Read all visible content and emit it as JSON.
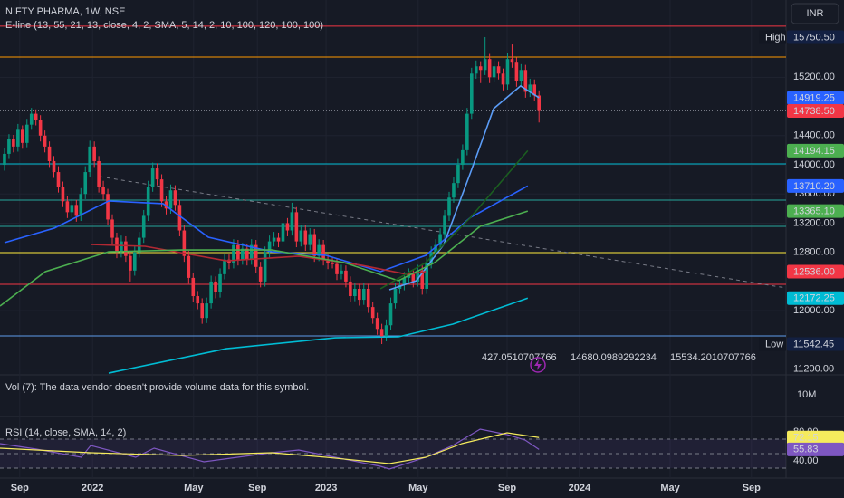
{
  "header": {
    "symbol": "NIFTY PHARMA, 1W, NSE",
    "indicator": "E-line (13, 55, 21, 13, close, 4, 2, SMA, 5, 14, 2, 10, 100, 120, 100, 100)",
    "currency": "INR"
  },
  "chart_data": {
    "type": "candlestick",
    "xlim": [
      -1,
      174
    ],
    "ylim": [
      11133,
      16259
    ],
    "up_color": "#089981",
    "down_color": "#f23645",
    "grid": true,
    "candles": [
      [
        14000,
        14230,
        13920,
        14150
      ],
      [
        14150,
        14420,
        14080,
        14350
      ],
      [
        14350,
        14410,
        14170,
        14250
      ],
      [
        14250,
        14560,
        14180,
        14480
      ],
      [
        14480,
        14540,
        14220,
        14300
      ],
      [
        14300,
        14630,
        14240,
        14550
      ],
      [
        14550,
        14780,
        14480,
        14700
      ],
      [
        14700,
        14760,
        14540,
        14620
      ],
      [
        14620,
        14680,
        14320,
        14400
      ],
      [
        14400,
        14470,
        14170,
        14250
      ],
      [
        14250,
        14320,
        13970,
        14050
      ],
      [
        14050,
        14120,
        13820,
        13900
      ],
      [
        13900,
        13980,
        13620,
        13700
      ],
      [
        13700,
        13770,
        13420,
        13500
      ],
      [
        13500,
        13570,
        13270,
        13350
      ],
      [
        13350,
        13530,
        13280,
        13450
      ],
      [
        13450,
        13520,
        13220,
        13300
      ],
      [
        13300,
        13680,
        13230,
        13600
      ],
      [
        13600,
        13980,
        13530,
        13900
      ],
      [
        13900,
        14330,
        13830,
        14250
      ],
      [
        14250,
        14320,
        13970,
        14050
      ],
      [
        14050,
        14120,
        13620,
        13700
      ],
      [
        13700,
        13780,
        13520,
        13600
      ],
      [
        13600,
        13670,
        13170,
        13250
      ],
      [
        13250,
        13320,
        12920,
        13000
      ],
      [
        13000,
        13070,
        12720,
        12800
      ],
      [
        12800,
        13030,
        12730,
        12950
      ],
      [
        12950,
        13020,
        12670,
        12750
      ],
      [
        12750,
        12820,
        12400,
        12550
      ],
      [
        12550,
        12880,
        12480,
        12800
      ],
      [
        12800,
        13080,
        12730,
        13000
      ],
      [
        13000,
        13380,
        12930,
        13300
      ],
      [
        13300,
        13780,
        13230,
        13700
      ],
      [
        13700,
        14030,
        13630,
        13950
      ],
      [
        13950,
        14020,
        13720,
        13800
      ],
      [
        13800,
        13870,
        13420,
        13500
      ],
      [
        13500,
        13570,
        13320,
        13400
      ],
      [
        13400,
        13730,
        13330,
        13650
      ],
      [
        13650,
        13720,
        13370,
        13450
      ],
      [
        13450,
        13520,
        13020,
        13100
      ],
      [
        13100,
        13170,
        12670,
        12750
      ],
      [
        12750,
        12820,
        12370,
        12450
      ],
      [
        12450,
        12520,
        12120,
        12200
      ],
      [
        12200,
        12270,
        12020,
        12100
      ],
      [
        12100,
        12170,
        11820,
        11900
      ],
      [
        11900,
        12180,
        11830,
        12100
      ],
      [
        12100,
        12480,
        12030,
        12400
      ],
      [
        12400,
        12470,
        12170,
        12250
      ],
      [
        12250,
        12580,
        12180,
        12500
      ],
      [
        12500,
        12780,
        12430,
        12700
      ],
      [
        12700,
        12770,
        12570,
        12650
      ],
      [
        12650,
        12980,
        12580,
        12900
      ],
      [
        12900,
        12970,
        12620,
        12700
      ],
      [
        12700,
        12930,
        12630,
        12850
      ],
      [
        12850,
        12920,
        12620,
        12700
      ],
      [
        12700,
        12980,
        12630,
        12900
      ],
      [
        12900,
        12970,
        12520,
        12600
      ],
      [
        12600,
        12670,
        12320,
        12400
      ],
      [
        12400,
        12880,
        12330,
        12800
      ],
      [
        12800,
        13030,
        12730,
        12950
      ],
      [
        12950,
        13080,
        12880,
        13000
      ],
      [
        13000,
        13070,
        12870,
        12950
      ],
      [
        12950,
        13280,
        12880,
        13200
      ],
      [
        13200,
        13270,
        13020,
        13100
      ],
      [
        13100,
        13480,
        13030,
        13350
      ],
      [
        13350,
        13420,
        12870,
        12950
      ],
      [
        12950,
        13180,
        12880,
        13100
      ],
      [
        13100,
        13170,
        12820,
        12900
      ],
      [
        12900,
        13130,
        12830,
        13050
      ],
      [
        13050,
        13120,
        12670,
        12750
      ],
      [
        12750,
        12980,
        12680,
        12900
      ],
      [
        12900,
        12970,
        12620,
        12700
      ],
      [
        12700,
        12770,
        12570,
        12650
      ],
      [
        12650,
        12720,
        12580,
        12640
      ],
      [
        12640,
        12720,
        12420,
        12500
      ],
      [
        12500,
        12630,
        12430,
        12550
      ],
      [
        12550,
        12620,
        12320,
        12400
      ],
      [
        12400,
        12470,
        12120,
        12200
      ],
      [
        12200,
        12380,
        12130,
        12300
      ],
      [
        12300,
        12370,
        12070,
        12150
      ],
      [
        12150,
        12380,
        12080,
        12300
      ],
      [
        12300,
        12370,
        11970,
        12050
      ],
      [
        12050,
        12120,
        11820,
        11900
      ],
      [
        11900,
        11970,
        11670,
        11750
      ],
      [
        11750,
        11820,
        11542.45,
        11650
      ],
      [
        11650,
        11880,
        11580,
        11800
      ],
      [
        11800,
        12180,
        11730,
        12100
      ],
      [
        12100,
        12380,
        12030,
        12300
      ],
      [
        12300,
        12430,
        12230,
        12350
      ],
      [
        12350,
        12530,
        12280,
        12450
      ],
      [
        12450,
        12580,
        12380,
        12500
      ],
      [
        12500,
        12570,
        12320,
        12400
      ],
      [
        12400,
        12630,
        12330,
        12550
      ],
      [
        12550,
        12620,
        12220,
        12300
      ],
      [
        12300,
        12730,
        12230,
        12650
      ],
      [
        12650,
        12880,
        12580,
        12800
      ],
      [
        12800,
        12980,
        12730,
        12900
      ],
      [
        12900,
        13130,
        12830,
        13050
      ],
      [
        13050,
        13380,
        12980,
        13300
      ],
      [
        13300,
        13630,
        13230,
        13550
      ],
      [
        13550,
        13830,
        13480,
        13750
      ],
      [
        13750,
        14080,
        13680,
        14000
      ],
      [
        14000,
        14280,
        13930,
        14200
      ],
      [
        14200,
        14780,
        14130,
        14700
      ],
      [
        14700,
        15330,
        14630,
        15250
      ],
      [
        15250,
        15430,
        15180,
        15350
      ],
      [
        15350,
        15420,
        15120,
        15300
      ],
      [
        15300,
        15750.5,
        15230,
        15450
      ],
      [
        15450,
        15520,
        15120,
        15200
      ],
      [
        15200,
        15430,
        15130,
        15350
      ],
      [
        15350,
        15420,
        15170,
        15250
      ],
      [
        15250,
        15320,
        15020,
        15100
      ],
      [
        15100,
        15530,
        15030,
        15450
      ],
      [
        15450,
        15650,
        15330,
        15400
      ],
      [
        15400,
        15470,
        15070,
        15150
      ],
      [
        15150,
        15380,
        15080,
        15300
      ],
      [
        15300,
        15370,
        14920,
        15000
      ],
      [
        15000,
        15180,
        14930,
        15100
      ],
      [
        15100,
        15170,
        14870,
        14950
      ],
      [
        14950,
        15020,
        14580,
        14738.5
      ]
    ],
    "yticks": [
      {
        "value": 11200,
        "label": "11200.00"
      },
      {
        "value": 12000,
        "label": "12000.00"
      },
      {
        "value": 12800,
        "label": "12800.00"
      },
      {
        "value": 13200,
        "label": "13200.00"
      },
      {
        "value": 13600,
        "label": "13600.00"
      },
      {
        "value": 14000,
        "label": "14000.00"
      },
      {
        "value": 14400,
        "label": "14400.00"
      },
      {
        "value": 15200,
        "label": "15200.00"
      }
    ],
    "xticks": [
      {
        "value": 3.4,
        "label": "Sep"
      },
      {
        "value": 19.6,
        "label": "2022"
      },
      {
        "value": 42.1,
        "label": "May"
      },
      {
        "value": 56.3,
        "label": "Sep"
      },
      {
        "value": 71.6,
        "label": "2023"
      },
      {
        "value": 92.1,
        "label": "May"
      },
      {
        "value": 111.9,
        "label": "Sep"
      },
      {
        "value": 128,
        "label": "2024"
      },
      {
        "value": 148.2,
        "label": "May"
      },
      {
        "value": 166.3,
        "label": "Sep"
      }
    ],
    "levels": [
      {
        "value": 15900,
        "color": "#f23645"
      },
      {
        "value": 15477,
        "color": "#ff9800"
      },
      {
        "value": 14013,
        "color": "#00bcd4"
      },
      {
        "value": 13516,
        "color": "#26a69a"
      },
      {
        "value": 13156,
        "color": "#26a69a"
      },
      {
        "value": 12796,
        "color": "#ffeb3b"
      },
      {
        "value": 12362,
        "color": "#f23645"
      },
      {
        "value": 11654,
        "color": "#5d9cec"
      }
    ],
    "price_line": {
      "value": 14738.5,
      "color": "#787b86"
    },
    "trend_line": {
      "x": [
        21.2,
        174
      ],
      "values": [
        13839,
        12312
      ],
      "color": "#787b86"
    },
    "lines": [
      {
        "color": "#2962ff",
        "x": [
          0,
          11.1,
          23.2,
          35.3,
          45.4,
          59.5,
          71.6,
          83.7,
          93.8,
          103.8,
          116.5
        ],
        "values": [
          12933,
          13132,
          13504,
          13467,
          13007,
          12809,
          12759,
          12536,
          12759,
          13280,
          13710.2
        ]
      },
      {
        "color": "#5b9cf6",
        "x": [
          85.7,
          91.7,
          97.8,
          103.8,
          108.9,
          114.9,
          119
        ],
        "values": [
          12287,
          12411,
          12908,
          13901,
          14770,
          15081,
          14919.25
        ]
      },
      {
        "color": "#b22833",
        "x": [
          19.2,
          31.3,
          49.4,
          65.5,
          79.6,
          89.7,
          93.8
        ],
        "values": [
          12908,
          12883,
          12684,
          12747,
          12622,
          12498,
          12536
        ]
      },
      {
        "color": "#4caf50",
        "x": [
          -1,
          9.1,
          23.2,
          39.3,
          59.5,
          75.6,
          87.7,
          95.8,
          105.9,
          116.5
        ],
        "values": [
          12064,
          12536,
          12808,
          12833,
          12833,
          12660,
          12412,
          12660,
          13156,
          13365.1
        ]
      },
      {
        "color": "#00bcd4",
        "x": [
          23.2,
          49.4,
          73.6,
          87.7,
          99.8,
          116.5
        ],
        "values": [
          11145,
          11480,
          11629,
          11642,
          11816,
          12172.25
        ]
      },
      {
        "color": "#1b5e20",
        "x": [
          83.7,
          93.8,
          103.8,
          116.5
        ],
        "values": [
          12300,
          12660,
          13280,
          14194.15
        ]
      }
    ],
    "price_labels": [
      {
        "value": 15750.5,
        "label": "15750.50",
        "color": "#132042"
      },
      {
        "value": 14919.25,
        "label": "14919.25",
        "color": "#2962ff"
      },
      {
        "value": 14738.5,
        "label": "14738.50",
        "color": "#f23645"
      },
      {
        "value": 14194.15,
        "label": "14194.15",
        "color": "#4caf50"
      },
      {
        "value": 13710.2,
        "label": "13710.20",
        "color": "#2962ff"
      },
      {
        "value": 13365.1,
        "label": "13365.10",
        "color": "#4caf50"
      },
      {
        "value": 12536,
        "label": "12536.00",
        "color": "#f23645"
      },
      {
        "value": 12172.25,
        "label": "12172.25",
        "color": "#00bcd4"
      },
      {
        "value": 11542.45,
        "label": "11542.45",
        "color": "#132042"
      }
    ],
    "high_label": "High",
    "low_label": "Low",
    "projection": [
      "427.0510707766",
      "14680.0989292234",
      "15534.2010707766"
    ]
  },
  "volume": {
    "title": "Vol (7): The data vendor doesn't provide volume data for this symbol.",
    "axis_label": "10M"
  },
  "rsi": {
    "title": "RSI (14, close, SMA, 14, 2)",
    "ylim": [
      16.25,
      98.75
    ],
    "yticks": [
      {
        "value": 80,
        "label": "80.00"
      },
      {
        "value": 40,
        "label": "40.00"
      }
    ],
    "bands": [
      70,
      50,
      30
    ],
    "series": [
      {
        "color": "#7e57c2",
        "x": [
          -1,
          7.1,
          17.1,
          19.2,
          29.2,
          33.3,
          44.4,
          59.5,
          65.5,
          83.7,
          85.7,
          93.8,
          99.8,
          105.9,
          111.9,
          115.9,
          119
        ],
        "values": [
          63.75,
          56.25,
          45,
          61.25,
          45,
          57.5,
          38.75,
          51.25,
          55,
          32.5,
          28.75,
          45,
          61.25,
          83.75,
          76.25,
          68.75,
          55.83
        ]
      },
      {
        "color": "#f5eb5d",
        "x": [
          -1,
          19.2,
          39.3,
          59.5,
          71.6,
          85.7,
          93.8,
          101.8,
          111.9,
          119
        ],
        "values": [
          57.5,
          51.25,
          47.5,
          51.25,
          45,
          36.25,
          45,
          63.75,
          78.75,
          72.15
        ]
      }
    ],
    "value_labels": [
      {
        "value": 72.15,
        "label": "72.15",
        "color": "#f5eb5d"
      },
      {
        "value": 55.83,
        "label": "55.83",
        "color": "#7e57c2"
      }
    ]
  }
}
